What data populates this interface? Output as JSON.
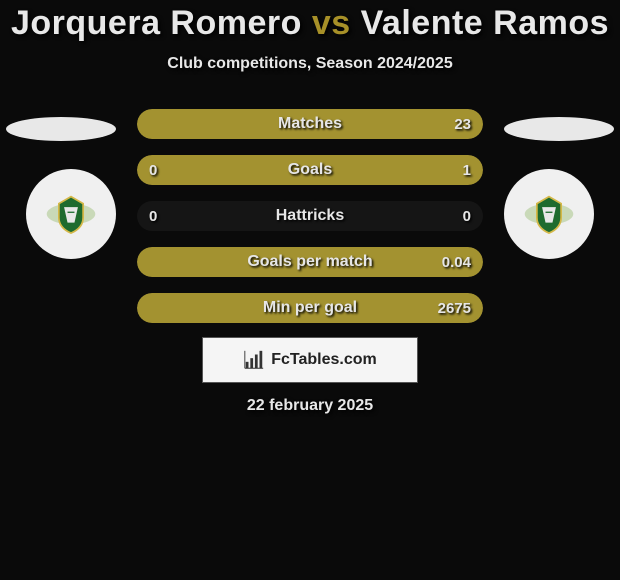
{
  "colors": {
    "accent": "#a79028",
    "bar_primary": "#a39230",
    "bar_secondary": "#5b5b5b",
    "bg": "#0a0a0a",
    "pill_bg": "#151515",
    "badge_bg": "#f0f0f0"
  },
  "title": {
    "player1": "Jorquera Romero",
    "vs": "vs",
    "player2": "Valente Ramos"
  },
  "subtitle": "Club competitions, Season 2024/2025",
  "stats": [
    {
      "label": "Matches",
      "left_val": "",
      "right_val": "23",
      "left_pct": 0,
      "right_pct": 100,
      "left_color": "#a39230",
      "right_color": "#a39230",
      "full": true
    },
    {
      "label": "Goals",
      "left_val": "0",
      "right_val": "1",
      "left_pct": 0,
      "right_pct": 100,
      "left_color": "#a39230",
      "right_color": "#a39230",
      "full": true
    },
    {
      "label": "Hattricks",
      "left_val": "0",
      "right_val": "0",
      "left_pct": 0,
      "right_pct": 0,
      "left_color": "#a39230",
      "right_color": "#a39230",
      "full": false
    },
    {
      "label": "Goals per match",
      "left_val": "",
      "right_val": "0.04",
      "left_pct": 0,
      "right_pct": 100,
      "left_color": "#a39230",
      "right_color": "#a39230",
      "full": true
    },
    {
      "label": "Min per goal",
      "left_val": "",
      "right_val": "2675",
      "left_pct": 0,
      "right_pct": 100,
      "left_color": "#a39230",
      "right_color": "#a39230",
      "full": true
    }
  ],
  "brand": "FcTables.com",
  "date": "22 february 2025",
  "icons": {
    "chart": "chart-icon",
    "club_crest": "crest-icon"
  }
}
